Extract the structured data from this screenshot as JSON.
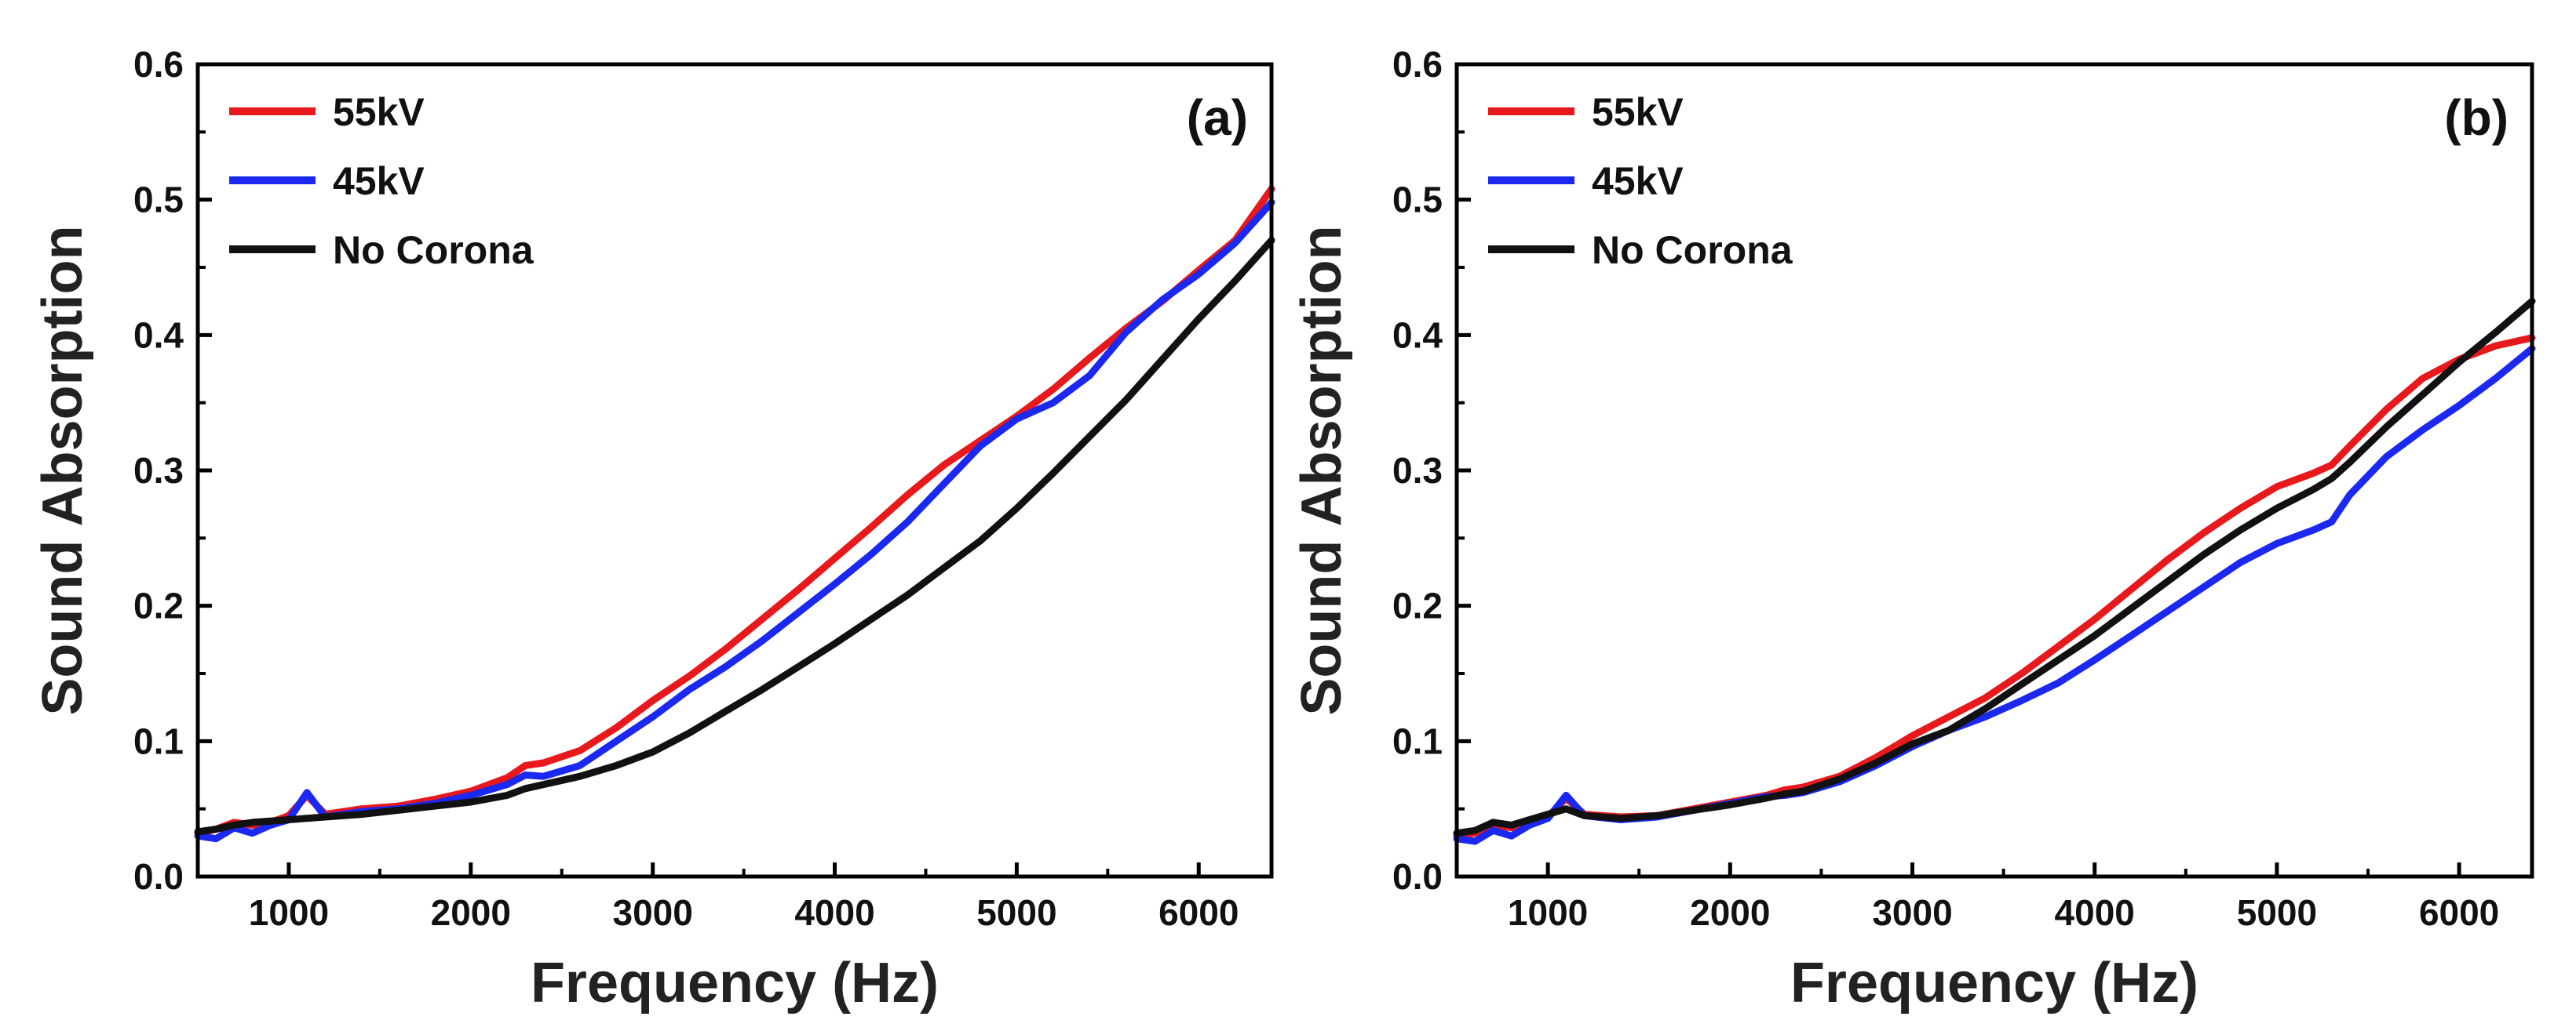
{
  "chart_data": [
    {
      "type": "line",
      "panel_label": "(a)",
      "xlabel": "Frequency (Hz)",
      "ylabel": "Sound Absorption",
      "xlim": [
        500,
        6400
      ],
      "ylim": [
        0.0,
        0.6
      ],
      "xticks": [
        1000,
        2000,
        3000,
        4000,
        5000,
        6000
      ],
      "yticks": [
        0.0,
        0.1,
        0.2,
        0.3,
        0.4,
        0.5,
        0.6
      ],
      "xtick_labels": [
        "1000",
        "2000",
        "3000",
        "4000",
        "5000",
        "6000"
      ],
      "ytick_labels": [
        "0.0",
        "0.1",
        "0.2",
        "0.3",
        "0.4",
        "0.5",
        "0.6"
      ],
      "legend_position": "top-left",
      "x": [
        500,
        600,
        700,
        800,
        900,
        1000,
        1100,
        1200,
        1400,
        1600,
        1800,
        2000,
        2200,
        2300,
        2400,
        2600,
        2800,
        3000,
        3200,
        3400,
        3600,
        3800,
        4000,
        4200,
        4400,
        4600,
        4800,
        5000,
        5200,
        5400,
        5600,
        5800,
        6000,
        6200,
        6400
      ],
      "series": [
        {
          "name": "55kV",
          "color": "#e8191c",
          "values": [
            0.032,
            0.035,
            0.04,
            0.038,
            0.04,
            0.045,
            0.06,
            0.046,
            0.05,
            0.052,
            0.057,
            0.063,
            0.073,
            0.082,
            0.084,
            0.093,
            0.11,
            0.13,
            0.148,
            0.168,
            0.19,
            0.212,
            0.235,
            0.258,
            0.282,
            0.304,
            0.322,
            0.34,
            0.36,
            0.383,
            0.405,
            0.425,
            0.448,
            0.47,
            0.508
          ]
        },
        {
          "name": "45kV",
          "color": "#1a28f0",
          "values": [
            0.03,
            0.028,
            0.036,
            0.032,
            0.038,
            0.042,
            0.062,
            0.044,
            0.048,
            0.05,
            0.054,
            0.06,
            0.068,
            0.075,
            0.074,
            0.082,
            0.1,
            0.118,
            0.138,
            0.155,
            0.174,
            0.195,
            0.216,
            0.238,
            0.262,
            0.29,
            0.318,
            0.338,
            0.35,
            0.37,
            0.402,
            0.426,
            0.445,
            0.468,
            0.498
          ]
        },
        {
          "name": "No Corona",
          "color": "#111111",
          "values": [
            0.033,
            0.035,
            0.038,
            0.04,
            0.041,
            0.042,
            0.043,
            0.044,
            0.046,
            0.049,
            0.052,
            0.055,
            0.06,
            0.065,
            0.068,
            0.074,
            0.082,
            0.092,
            0.106,
            0.122,
            0.138,
            0.155,
            0.172,
            0.19,
            0.208,
            0.228,
            0.248,
            0.272,
            0.298,
            0.325,
            0.352,
            0.382,
            0.412,
            0.44,
            0.47
          ]
        }
      ]
    },
    {
      "type": "line",
      "panel_label": "(b)",
      "xlabel": "Frequency (Hz)",
      "ylabel": "Sound Absorption",
      "xlim": [
        500,
        6400
      ],
      "ylim": [
        0.0,
        0.6
      ],
      "xticks": [
        1000,
        2000,
        3000,
        4000,
        5000,
        6000
      ],
      "yticks": [
        0.0,
        0.1,
        0.2,
        0.3,
        0.4,
        0.5,
        0.6
      ],
      "xtick_labels": [
        "1000",
        "2000",
        "3000",
        "4000",
        "5000",
        "6000"
      ],
      "ytick_labels": [
        "0.0",
        "0.1",
        "0.2",
        "0.3",
        "0.4",
        "0.5",
        "0.6"
      ],
      "legend_position": "top-left",
      "x": [
        500,
        600,
        700,
        800,
        900,
        1000,
        1100,
        1200,
        1400,
        1600,
        1800,
        2000,
        2200,
        2300,
        2400,
        2600,
        2800,
        3000,
        3200,
        3400,
        3600,
        3800,
        4000,
        4200,
        4400,
        4600,
        4800,
        5000,
        5200,
        5300,
        5400,
        5600,
        5800,
        6000,
        6200,
        6400
      ],
      "series": [
        {
          "name": "55kV",
          "color": "#e8191c",
          "values": [
            0.03,
            0.032,
            0.038,
            0.036,
            0.04,
            0.044,
            0.058,
            0.046,
            0.044,
            0.045,
            0.05,
            0.055,
            0.06,
            0.064,
            0.066,
            0.074,
            0.088,
            0.104,
            0.118,
            0.132,
            0.15,
            0.17,
            0.19,
            0.212,
            0.234,
            0.254,
            0.272,
            0.288,
            0.298,
            0.304,
            0.318,
            0.345,
            0.368,
            0.382,
            0.392,
            0.398
          ]
        },
        {
          "name": "45kV",
          "color": "#1a28f0",
          "values": [
            0.028,
            0.026,
            0.034,
            0.03,
            0.038,
            0.043,
            0.06,
            0.045,
            0.042,
            0.044,
            0.049,
            0.054,
            0.059,
            0.06,
            0.062,
            0.07,
            0.082,
            0.096,
            0.108,
            0.118,
            0.13,
            0.143,
            0.16,
            0.178,
            0.196,
            0.214,
            0.232,
            0.246,
            0.256,
            0.262,
            0.282,
            0.31,
            0.33,
            0.348,
            0.368,
            0.39
          ]
        },
        {
          "name": "No Corona",
          "color": "#111111",
          "values": [
            0.032,
            0.034,
            0.04,
            0.038,
            0.042,
            0.046,
            0.05,
            0.045,
            0.043,
            0.045,
            0.049,
            0.053,
            0.058,
            0.061,
            0.063,
            0.072,
            0.084,
            0.098,
            0.108,
            0.124,
            0.142,
            0.16,
            0.178,
            0.198,
            0.218,
            0.238,
            0.256,
            0.272,
            0.286,
            0.294,
            0.306,
            0.332,
            0.356,
            0.38,
            0.402,
            0.425
          ]
        }
      ]
    }
  ]
}
